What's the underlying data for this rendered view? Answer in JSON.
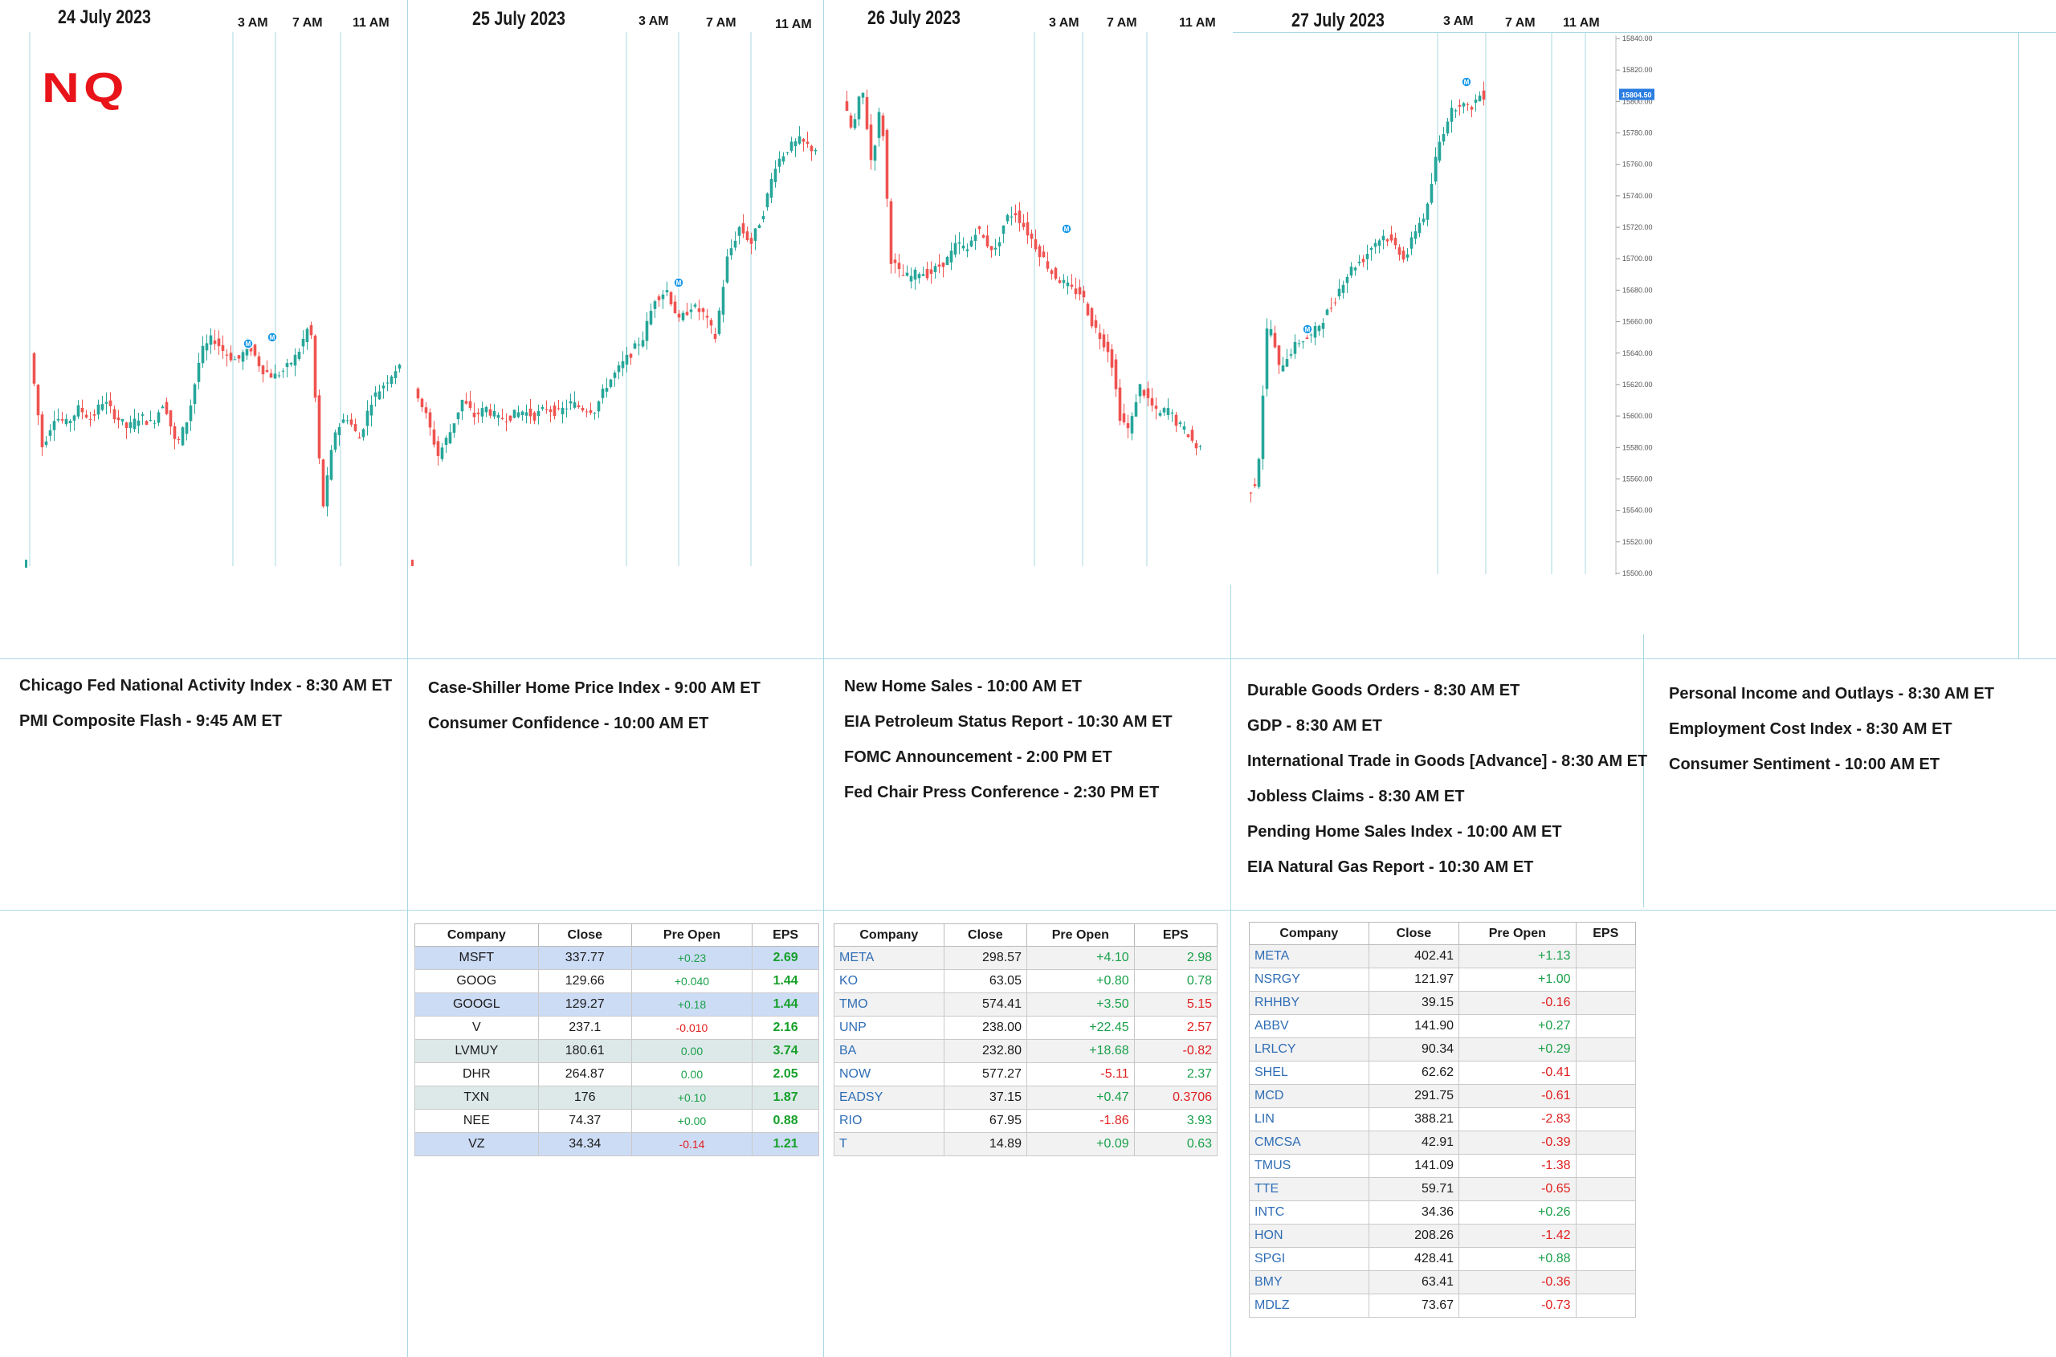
{
  "logo": "NQ",
  "days": [
    {
      "date": "24 July 2023",
      "times": [
        "3 AM",
        "7 AM",
        "11 AM"
      ]
    },
    {
      "date": "25 July 2023",
      "times": [
        "3 AM",
        "7 AM",
        "11 AM"
      ]
    },
    {
      "date": "26 July 2023",
      "times": [
        "3 AM",
        "7 AM",
        "11 AM"
      ]
    },
    {
      "date": "27 July 2023",
      "times": [
        "3 AM",
        "7 AM",
        "11 AM"
      ]
    }
  ],
  "chart_data": {
    "type": "candlestick",
    "symbol": "NQ",
    "ylim": [
      15500,
      15840
    ],
    "y_ticks": [
      15500,
      15520,
      15540,
      15560,
      15580,
      15600,
      15620,
      15640,
      15660,
      15680,
      15700,
      15720,
      15740,
      15760,
      15780,
      15800,
      15820,
      15840
    ],
    "y_tick_labels": [
      "15500.00",
      "15520.00",
      "15540.00",
      "15560.00",
      "15580.00",
      "15600.00",
      "15620.00",
      "15640.00",
      "15660.00",
      "15680.00",
      "15700.00",
      "15720.00",
      "15740.00",
      "15760.00",
      "15780.00",
      "15800.00",
      "15820.00",
      "15840.00"
    ],
    "last_price": "15804.50",
    "colors": {
      "up": "#26a69a",
      "down": "#ef5350",
      "grid": "#a8d8e2",
      "marker": "#1e9be8"
    },
    "price_path": [
      {
        "day": "24 July 2023",
        "points": [
          15640,
          15580,
          15600,
          15595,
          15605,
          15598,
          15610,
          15600,
          15592,
          15600,
          15595,
          15610,
          15580,
          15600,
          15640,
          15650,
          15640,
          15635,
          15645,
          15630,
          15625,
          15630,
          15640,
          15660,
          15540,
          15590,
          15600,
          15585,
          15610,
          15620,
          15630
        ]
      },
      {
        "day": "25 July 2023",
        "points": [
          15620,
          15600,
          15575,
          15590,
          15610,
          15600,
          15605,
          15598,
          15600,
          15603,
          15600,
          15605,
          15602,
          15608,
          15605,
          15604,
          15620,
          15630,
          15640,
          15650,
          15675,
          15680,
          15660,
          15670,
          15665,
          15650,
          15700,
          15720,
          15710,
          15730,
          15760,
          15770,
          15775,
          15770
        ]
      },
      {
        "day": "26 July 2023",
        "points": [
          15800,
          15780,
          15810,
          15760,
          15800,
          15700,
          15690,
          15688,
          15692,
          15690,
          15695,
          15700,
          15710,
          15705,
          15720,
          15710,
          15705,
          15725,
          15730,
          15720,
          15710,
          15700,
          15690,
          15685,
          15680,
          15678,
          15660,
          15650,
          15640,
          15600,
          15590,
          15620,
          15610,
          15600,
          15605,
          15595,
          15590,
          15580
        ]
      },
      {
        "day": "27 July 2023",
        "points": [
          15550,
          15560,
          15665,
          15630,
          15640,
          15648,
          15650,
          15660,
          15670,
          15685,
          15695,
          15700,
          15710,
          15715,
          15708,
          15700,
          15720,
          15730,
          15770,
          15790,
          15800,
          15795,
          15804
        ]
      }
    ],
    "markers": [
      "M",
      "M",
      "M",
      "M",
      "M",
      "M"
    ]
  },
  "events": [
    [
      "Chicago Fed National Activity Index -  8:30 AM ET",
      "PMI Composite Flash - 9:45 AM ET"
    ],
    [
      "Case-Shiller Home Price Index - 9:00 AM ET",
      "Consumer Confidence - 10:00 AM ET"
    ],
    [
      "New Home Sales - 10:00 AM ET",
      "EIA Petroleum Status Report - 10:30 AM ET",
      "FOMC Announcement - 2:00 PM ET",
      "Fed Chair Press Conference - 2:30 PM ET"
    ],
    [
      "Durable Goods Orders - 8:30 AM ET",
      "GDP - 8:30 AM ET",
      "International Trade in Goods [Advance] - 8:30 AM ET",
      "Jobless Claims - 8:30 AM ET",
      "Pending Home Sales Index - 10:00 AM ET",
      "EIA Natural Gas Report - 10:30 AM ET"
    ],
    [
      "Personal Income and Outlays - 8:30 AM ET",
      "Employment Cost Index - 8:30 AM ET",
      "Consumer Sentiment - 10:00 AM ET"
    ]
  ],
  "tables": [
    {
      "headers": [
        "Company",
        "Close",
        "Pre Open",
        "EPS"
      ],
      "rows": [
        [
          "MSFT",
          "337.77",
          "+0.23",
          "2.69"
        ],
        [
          "GOOG",
          "129.66",
          "+0.040",
          "1.44"
        ],
        [
          "GOOGL",
          "129.27",
          "+0.18",
          "1.44"
        ],
        [
          "V",
          "237.1",
          "-0.010",
          "2.16"
        ],
        [
          "LVMUY",
          "180.61",
          "0.00",
          "3.74"
        ],
        [
          "DHR",
          "264.87",
          "0.00",
          "2.05"
        ],
        [
          "TXN",
          "176",
          "+0.10",
          "1.87"
        ],
        [
          "NEE",
          "74.37",
          "+0.00",
          "0.88"
        ],
        [
          "VZ",
          "34.34",
          "-0.14",
          "1.21"
        ]
      ]
    },
    {
      "headers": [
        "Company",
        "Close",
        "Pre Open",
        "EPS"
      ],
      "rows": [
        [
          "META",
          "298.57",
          "+4.10",
          "2.98"
        ],
        [
          "KO",
          "63.05",
          "+0.80",
          "0.78"
        ],
        [
          "TMO",
          "574.41",
          "+3.50",
          "5.15"
        ],
        [
          "UNP",
          "238.00",
          "+22.45",
          "2.57"
        ],
        [
          "BA",
          "232.80",
          "+18.68",
          "-0.82"
        ],
        [
          "NOW",
          "577.27",
          "-5.11",
          "2.37"
        ],
        [
          "EADSY",
          "37.15",
          "+0.47",
          "0.3706"
        ],
        [
          "RIO",
          "67.95",
          "-1.86",
          "3.93"
        ],
        [
          "T",
          "14.89",
          "+0.09",
          "0.63"
        ]
      ]
    },
    {
      "headers": [
        "Company",
        "Close",
        "Pre Open",
        "EPS"
      ],
      "rows": [
        [
          "META",
          "402.41",
          "+1.13",
          ""
        ],
        [
          "NSRGY",
          "121.97",
          "+1.00",
          ""
        ],
        [
          "RHHBY",
          "39.15",
          "-0.16",
          ""
        ],
        [
          "ABBV",
          "141.90",
          "+0.27",
          ""
        ],
        [
          "LRLCY",
          "90.34",
          "+0.29",
          ""
        ],
        [
          "SHEL",
          "62.62",
          "-0.41",
          ""
        ],
        [
          "MCD",
          "291.75",
          "-0.61",
          ""
        ],
        [
          "LIN",
          "388.21",
          "-2.83",
          ""
        ],
        [
          "CMCSA",
          "42.91",
          "-0.39",
          ""
        ],
        [
          "TMUS",
          "141.09",
          "-1.38",
          ""
        ],
        [
          "TTE",
          "59.71",
          "-0.65",
          ""
        ],
        [
          "INTC",
          "34.36",
          "+0.26",
          ""
        ],
        [
          "HON",
          "208.26",
          "-1.42",
          ""
        ],
        [
          "SPGI",
          "428.41",
          "+0.88",
          ""
        ],
        [
          "BMY",
          "63.41",
          "-0.36",
          ""
        ],
        [
          "MDLZ",
          "73.67",
          "-0.73",
          ""
        ]
      ]
    }
  ]
}
